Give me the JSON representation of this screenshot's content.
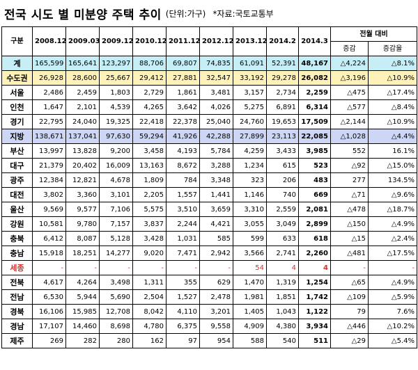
{
  "title": {
    "main": "전국 시도 별 미분양 주택 추이",
    "unit": "(단위:가구)",
    "source": "*자료:국토교통부"
  },
  "table": {
    "header": {
      "label": "구분",
      "periods": [
        "2008.12",
        "2009.03",
        "2009.12",
        "2010.12",
        "2011.12",
        "2012.12",
        "2013.12",
        "2014.2",
        "2014.3"
      ],
      "change_group": "전월 대비",
      "change_cols": [
        "증감",
        "증감율"
      ]
    },
    "rows": [
      {
        "label": "계",
        "values": [
          "165,599",
          "165,641",
          "123,297",
          "88,706",
          "69,807",
          "74,835",
          "61,091",
          "52,391",
          "48,167"
        ],
        "change": "△4,224",
        "rate": "△8.1%"
      },
      {
        "label": "수도권",
        "values": [
          "26,928",
          "28,600",
          "25,667",
          "29,412",
          "27,881",
          "32,547",
          "33,192",
          "29,278",
          "26,082"
        ],
        "change": "△3,196",
        "rate": "△10.9%"
      },
      {
        "label": "서울",
        "values": [
          "2,486",
          "2,459",
          "1,803",
          "2,729",
          "1,861",
          "3,481",
          "3,157",
          "2,734",
          "2,259"
        ],
        "change": "△475",
        "rate": "△17.4%"
      },
      {
        "label": "인천",
        "values": [
          "1,647",
          "2,101",
          "4,539",
          "4,265",
          "3,642",
          "4,026",
          "5,275",
          "6,891",
          "6,314"
        ],
        "change": "△577",
        "rate": "△8.4%"
      },
      {
        "label": "경기",
        "values": [
          "22,795",
          "24,040",
          "19,325",
          "22,418",
          "22,378",
          "25,040",
          "24,760",
          "19,653",
          "17,509"
        ],
        "change": "△2,144",
        "rate": "△10.9%"
      },
      {
        "label": "지방",
        "values": [
          "138,671",
          "137,041",
          "97,630",
          "59,294",
          "41,926",
          "42,288",
          "27,899",
          "23,113",
          "22,085"
        ],
        "change": "△1,028",
        "rate": "△4.4%"
      },
      {
        "label": "부산",
        "values": [
          "13,997",
          "13,828",
          "9,200",
          "3,458",
          "4,193",
          "5,784",
          "4,259",
          "3,433",
          "3,985"
        ],
        "change": "552",
        "rate": "16.1%"
      },
      {
        "label": "대구",
        "values": [
          "21,379",
          "20,402",
          "16,009",
          "13,163",
          "8,672",
          "3,288",
          "1,234",
          "615",
          "523"
        ],
        "change": "△92",
        "rate": "△15.0%"
      },
      {
        "label": "광주",
        "values": [
          "12,384",
          "12,821",
          "4,678",
          "1,809",
          "784",
          "3,348",
          "323",
          "206",
          "483"
        ],
        "change": "277",
        "rate": "134.5%"
      },
      {
        "label": "대전",
        "values": [
          "3,802",
          "3,360",
          "3,101",
          "2,205",
          "1,557",
          "1,441",
          "1,146",
          "740",
          "669"
        ],
        "change": "△71",
        "rate": "△9.6%"
      },
      {
        "label": "울산",
        "values": [
          "9,569",
          "9,577",
          "7,106",
          "5,575",
          "3,510",
          "3,659",
          "3,310",
          "2,559",
          "2,081"
        ],
        "change": "△478",
        "rate": "△18.7%"
      },
      {
        "label": "강원",
        "values": [
          "10,581",
          "9,780",
          "7,157",
          "3,837",
          "2,244",
          "4,421",
          "3,055",
          "3,049",
          "2,899"
        ],
        "change": "△150",
        "rate": "△4.9%"
      },
      {
        "label": "충북",
        "values": [
          "6,412",
          "8,087",
          "5,128",
          "3,428",
          "1,031",
          "585",
          "599",
          "633",
          "618"
        ],
        "change": "△15",
        "rate": "△2.4%"
      },
      {
        "label": "충남",
        "values": [
          "15,918",
          "18,251",
          "14,277",
          "9,020",
          "7,471",
          "2,942",
          "3,566",
          "2,741",
          "2,260"
        ],
        "change": "△481",
        "rate": "△17.5%"
      },
      {
        "label": "세종",
        "values": [
          "-",
          "-",
          "-",
          "-",
          "-",
          "-",
          "54",
          "4",
          "4"
        ],
        "change": "-",
        "rate": "-"
      },
      {
        "label": "전북",
        "values": [
          "4,617",
          "4,264",
          "3,498",
          "1,311",
          "355",
          "629",
          "1,470",
          "1,319",
          "1,254"
        ],
        "change": "△65",
        "rate": "△4.9%"
      },
      {
        "label": "전남",
        "values": [
          "6,530",
          "5,944",
          "5,690",
          "2,504",
          "1,527",
          "2,478",
          "1,981",
          "1,851",
          "1,742"
        ],
        "change": "△109",
        "rate": "△5.9%"
      },
      {
        "label": "경북",
        "values": [
          "16,106",
          "15,985",
          "12,708",
          "8,042",
          "4,110",
          "3,201",
          "1,405",
          "1,043",
          "1,122"
        ],
        "change": "79",
        "rate": "7.6%"
      },
      {
        "label": "경남",
        "values": [
          "17,107",
          "14,460",
          "8,698",
          "4,780",
          "6,375",
          "9,558",
          "4,909",
          "4,380",
          "3,934"
        ],
        "change": "△446",
        "rate": "△10.2%"
      },
      {
        "label": "제주",
        "values": [
          "269",
          "282",
          "280",
          "162",
          "97",
          "954",
          "588",
          "540",
          "511"
        ],
        "change": "△29",
        "rate": "△5.4%"
      }
    ]
  }
}
